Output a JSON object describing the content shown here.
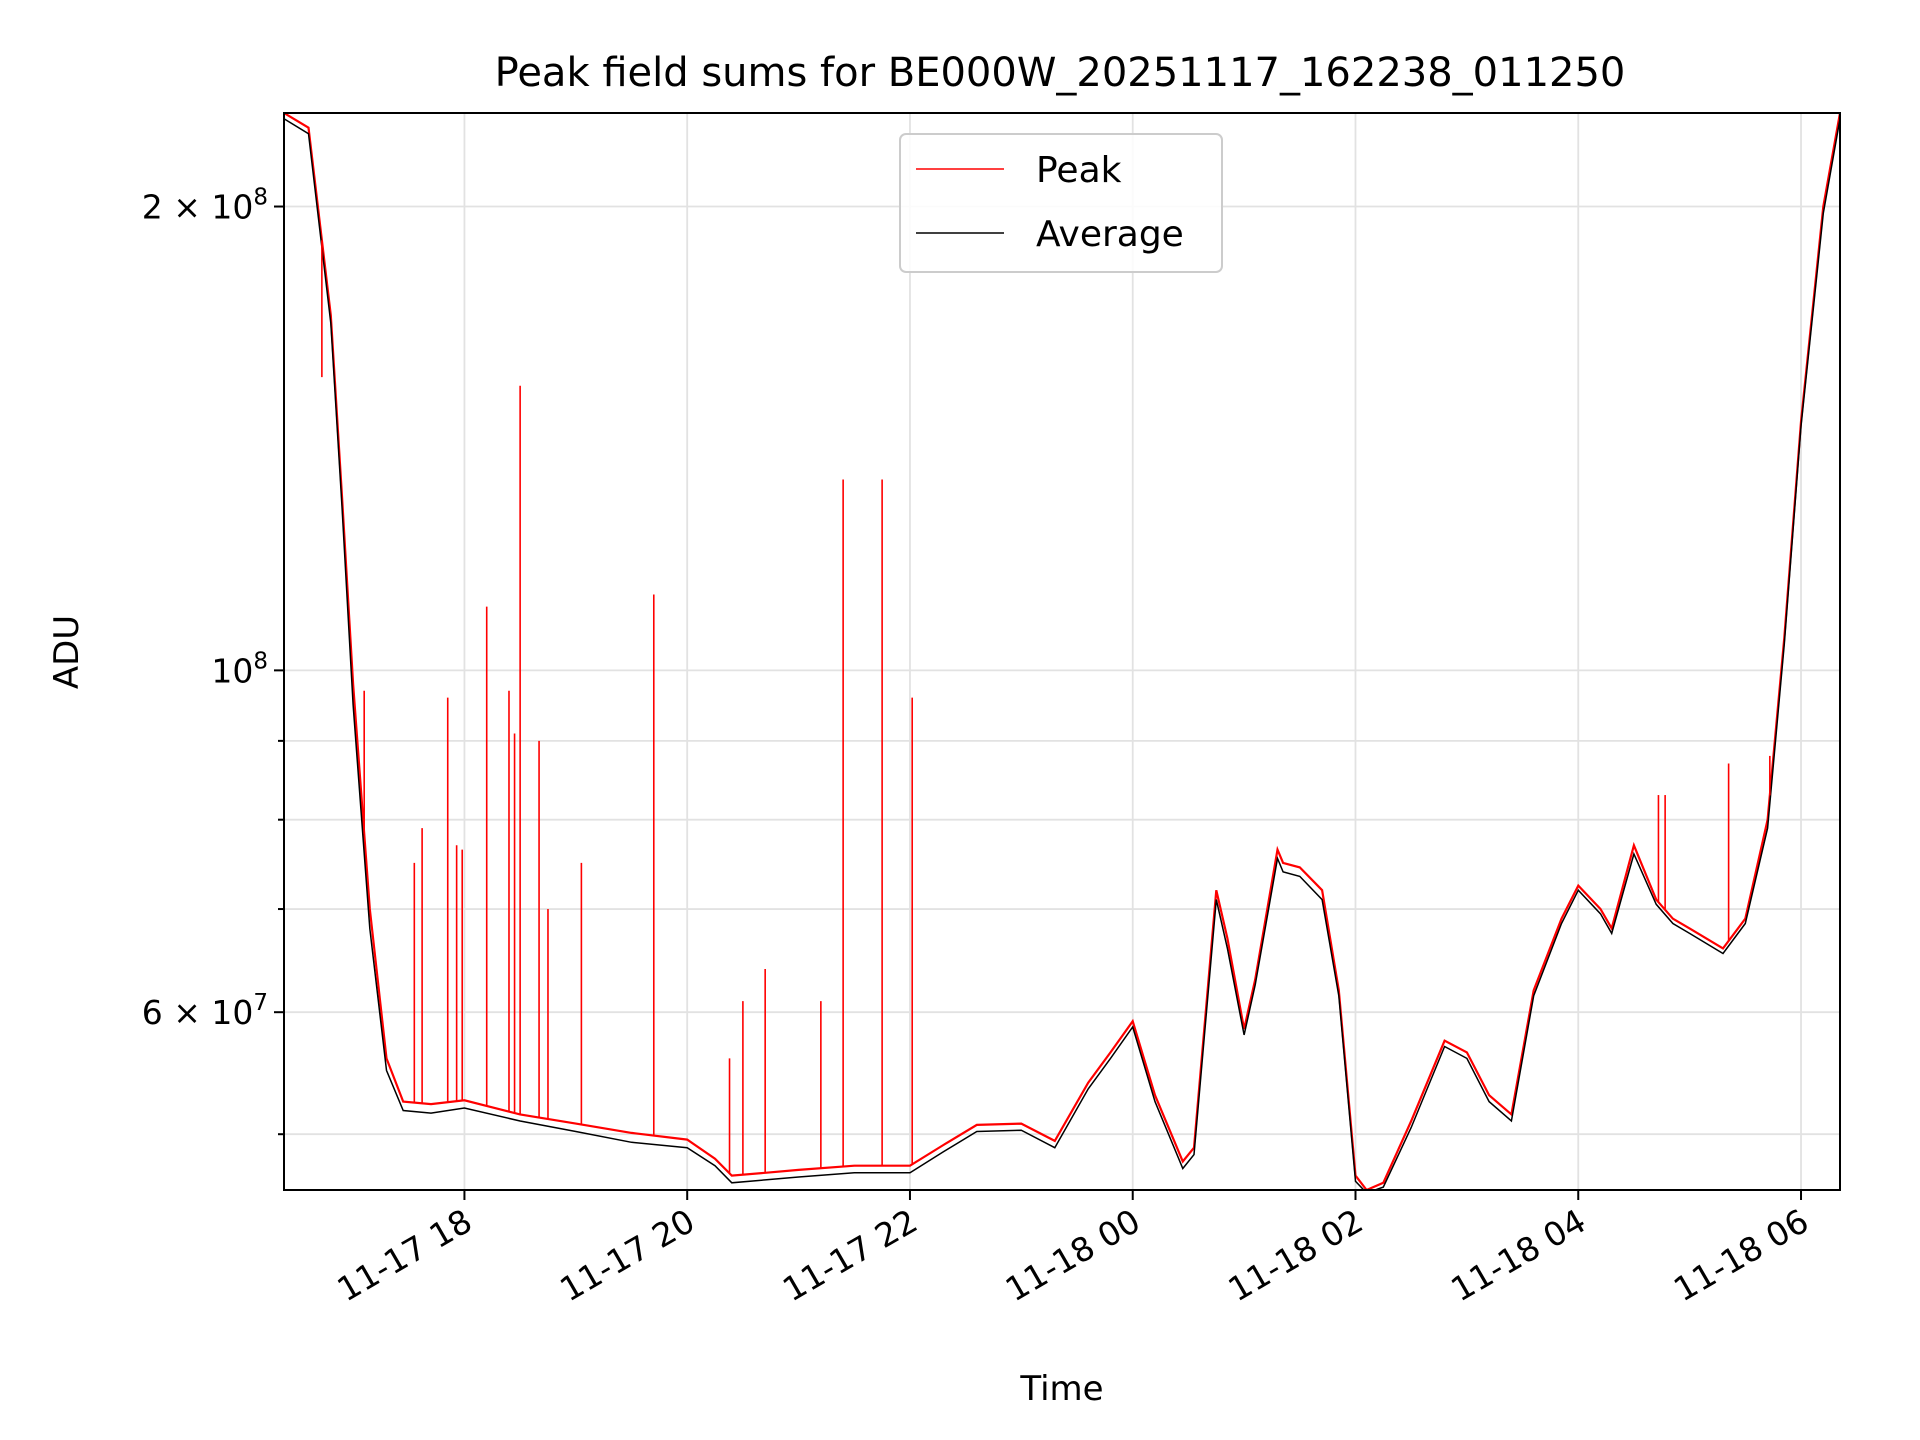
{
  "chart_data": {
    "type": "line",
    "title": "Peak field sums for BE000W_20251117_162238_011250",
    "xlabel": "Time",
    "ylabel": "ADU",
    "yscale": "log",
    "x_unit": "hours since 11-17 00:00",
    "xlim": [
      16.38,
      30.35
    ],
    "ylim": [
      46000000,
      230000000
    ],
    "grid": true,
    "legend_position": "top-center",
    "x_ticks": [
      {
        "value": 18,
        "label": "11-17 18"
      },
      {
        "value": 20,
        "label": "11-17 20"
      },
      {
        "value": 22,
        "label": "11-17 22"
      },
      {
        "value": 24,
        "label": "11-18 00"
      },
      {
        "value": 26,
        "label": "11-18 02"
      },
      {
        "value": 28,
        "label": "11-18 04"
      },
      {
        "value": 30,
        "label": "11-18 06"
      }
    ],
    "y_ticks": [
      {
        "value": 200000000,
        "label_base": "2 × 10",
        "label_exp": "8"
      },
      {
        "value": 100000000,
        "label_base": "10",
        "label_exp": "8"
      },
      {
        "value": 60000000,
        "label_base": "6 × 10",
        "label_exp": "7"
      }
    ],
    "y_minor_ticks": [
      50000000,
      70000000,
      80000000,
      90000000
    ],
    "series": [
      {
        "name": "Peak",
        "color": "#ff0000",
        "x": [
          16.38,
          16.6,
          16.8,
          16.9,
          17.0,
          17.15,
          17.3,
          17.45,
          17.7,
          18.0,
          18.5,
          19.0,
          19.5,
          20.0,
          20.25,
          20.4,
          20.7,
          21.0,
          21.5,
          22.0,
          22.3,
          22.6,
          23.0,
          23.3,
          23.6,
          23.8,
          24.0,
          24.2,
          24.45,
          24.55,
          24.75,
          24.85,
          25.0,
          25.1,
          25.3,
          25.35,
          25.5,
          25.7,
          25.85,
          26.0,
          26.1,
          26.25,
          26.5,
          26.8,
          27.0,
          27.2,
          27.4,
          27.6,
          27.85,
          28.0,
          28.2,
          28.3,
          28.5,
          28.7,
          28.85,
          29.0,
          29.3,
          29.5,
          29.7,
          29.85,
          30.0,
          30.2,
          30.35
        ],
        "values": [
          230000000,
          225000000,
          170000000,
          130000000,
          98000000,
          70000000,
          56000000,
          52500000,
          52300000,
          52600000,
          51500000,
          50800000,
          50100000,
          49600000,
          48200000,
          47000000,
          47200000,
          47400000,
          47700000,
          47700000,
          49200000,
          50700000,
          50800000,
          49500000,
          54000000,
          56500000,
          59200000,
          53000000,
          48000000,
          49000000,
          72000000,
          67000000,
          58500000,
          63000000,
          76500000,
          75000000,
          74500000,
          72000000,
          62000000,
          47000000,
          46000000,
          46500000,
          51000000,
          57500000,
          56500000,
          53000000,
          51500000,
          62000000,
          69000000,
          72500000,
          70000000,
          68000000,
          77000000,
          71000000,
          69000000,
          68000000,
          66000000,
          69000000,
          80000000,
          105000000,
          145000000,
          200000000,
          230000000
        ]
      },
      {
        "name": "Average",
        "color": "#000000",
        "x": [
          16.38,
          16.6,
          16.8,
          16.9,
          17.0,
          17.15,
          17.3,
          17.45,
          17.7,
          18.0,
          18.5,
          19.0,
          19.5,
          20.0,
          20.25,
          20.4,
          20.7,
          21.0,
          21.5,
          22.0,
          22.3,
          22.6,
          23.0,
          23.3,
          23.6,
          23.8,
          24.0,
          24.2,
          24.45,
          24.55,
          24.75,
          24.85,
          25.0,
          25.1,
          25.3,
          25.35,
          25.5,
          25.7,
          25.85,
          26.0,
          26.1,
          26.25,
          26.5,
          26.8,
          27.0,
          27.2,
          27.4,
          27.6,
          27.85,
          28.0,
          28.2,
          28.3,
          28.5,
          28.7,
          28.85,
          29.0,
          29.3,
          29.5,
          29.7,
          29.85,
          30.0,
          30.2,
          30.35
        ],
        "values": [
          228000000,
          223000000,
          168000000,
          128000000,
          95000000,
          68000000,
          55000000,
          51800000,
          51600000,
          52000000,
          51000000,
          50200000,
          49400000,
          49000000,
          47700000,
          46500000,
          46700000,
          46900000,
          47200000,
          47200000,
          48700000,
          50200000,
          50300000,
          49000000,
          53500000,
          56000000,
          58700000,
          52500000,
          47500000,
          48500000,
          71000000,
          66000000,
          58000000,
          62500000,
          75500000,
          74000000,
          73500000,
          71000000,
          61500000,
          46600000,
          45800000,
          46200000,
          50500000,
          57000000,
          56000000,
          52500000,
          51000000,
          61500000,
          68500000,
          72000000,
          69500000,
          67500000,
          76000000,
          70500000,
          68500000,
          67500000,
          65500000,
          68500000,
          79000000,
          104000000,
          144000000,
          198000000,
          228000000
        ]
      }
    ],
    "peak_spikes": [
      {
        "x": 16.72,
        "value": 155000000
      },
      {
        "x": 17.0,
        "value": 98000000
      },
      {
        "x": 17.1,
        "value": 97000000
      },
      {
        "x": 17.55,
        "value": 75000000
      },
      {
        "x": 17.62,
        "value": 79000000
      },
      {
        "x": 17.85,
        "value": 96000000
      },
      {
        "x": 17.93,
        "value": 77000000
      },
      {
        "x": 17.98,
        "value": 76500000
      },
      {
        "x": 18.2,
        "value": 110000000
      },
      {
        "x": 18.4,
        "value": 97000000
      },
      {
        "x": 18.45,
        "value": 91000000
      },
      {
        "x": 18.5,
        "value": 153000000
      },
      {
        "x": 18.67,
        "value": 90000000
      },
      {
        "x": 18.75,
        "value": 70000000
      },
      {
        "x": 19.05,
        "value": 75000000
      },
      {
        "x": 19.7,
        "value": 112000000
      },
      {
        "x": 20.38,
        "value": 56000000
      },
      {
        "x": 20.5,
        "value": 61000000
      },
      {
        "x": 20.7,
        "value": 64000000
      },
      {
        "x": 21.2,
        "value": 61000000
      },
      {
        "x": 21.4,
        "value": 133000000
      },
      {
        "x": 21.75,
        "value": 133000000
      },
      {
        "x": 22.02,
        "value": 96000000
      },
      {
        "x": 29.35,
        "value": 87000000
      },
      {
        "x": 29.72,
        "value": 88000000
      },
      {
        "x": 28.72,
        "value": 83000000
      },
      {
        "x": 28.78,
        "value": 83000000
      }
    ],
    "legend": [
      {
        "label": "Peak",
        "color": "#ff0000"
      },
      {
        "label": "Average",
        "color": "#000000"
      }
    ]
  }
}
